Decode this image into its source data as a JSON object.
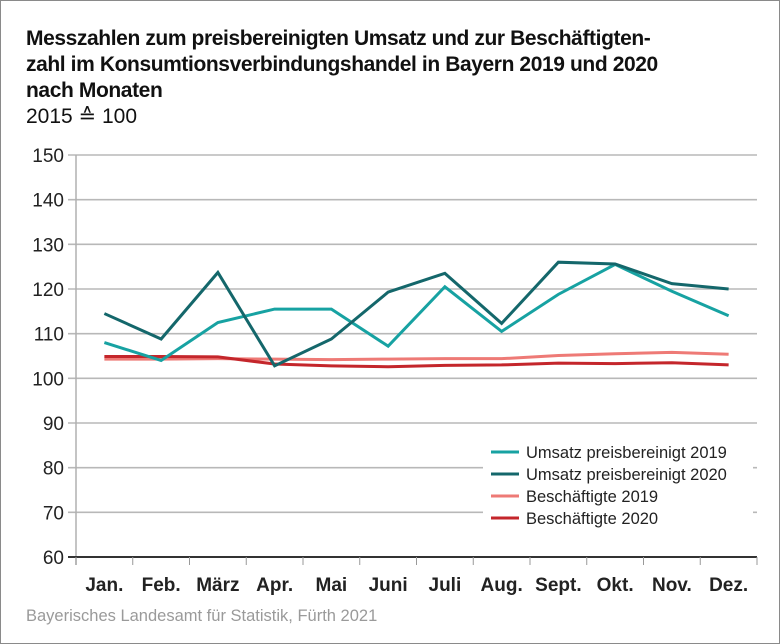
{
  "chart_data": {
    "type": "line",
    "title": "Messzahlen zum preisbereinigten Umsatz und zur Beschäftigten-zahl im Konsumtionsverbindungshandel in Bayern 2019 und 2020 nach Monaten",
    "title_lines": [
      "Messzahlen zum preisbereinigten Umsatz und zur Beschäftigten-",
      "zahl im Konsumtionsverbindungshandel in Bayern 2019 und 2020",
      "nach Monaten"
    ],
    "subtitle": "2015 ≙ 100",
    "xlabel": "",
    "ylabel": "",
    "ylim": [
      60,
      150
    ],
    "yticks": [
      60,
      70,
      80,
      90,
      100,
      110,
      120,
      130,
      140,
      150
    ],
    "grid": true,
    "legend_position": "bottom-right",
    "categories": [
      "Jan.",
      "Feb.",
      "März",
      "Apr.",
      "Mai",
      "Juni",
      "Juli",
      "Aug.",
      "Sept.",
      "Okt.",
      "Nov.",
      "Dez."
    ],
    "series": [
      {
        "name": "Umsatz preisbereinigt 2019",
        "color": "#17a2a2",
        "values": [
          108.0,
          104.0,
          112.5,
          115.5,
          115.5,
          107.2,
          120.5,
          110.5,
          118.8,
          125.5,
          119.5,
          114.0
        ]
      },
      {
        "name": "Umsatz preisbereinigt 2020",
        "color": "#14676b",
        "values": [
          114.5,
          108.8,
          123.7,
          102.8,
          108.8,
          119.3,
          123.5,
          112.3,
          126.0,
          125.6,
          121.2,
          120.0
        ]
      },
      {
        "name": "Beschäftigte 2019",
        "color": "#ee7a76",
        "values": [
          104.3,
          104.3,
          104.4,
          104.3,
          104.2,
          104.3,
          104.4,
          104.4,
          105.1,
          105.5,
          105.8,
          105.4
        ]
      },
      {
        "name": "Beschäftigte 2020",
        "color": "#c4262b",
        "values": [
          104.9,
          104.9,
          104.8,
          103.2,
          102.8,
          102.6,
          102.9,
          103.0,
          103.4,
          103.3,
          103.5,
          103.0
        ]
      }
    ],
    "source": "Bayerisches Landesamt für Statistik, Fürth 2021"
  }
}
